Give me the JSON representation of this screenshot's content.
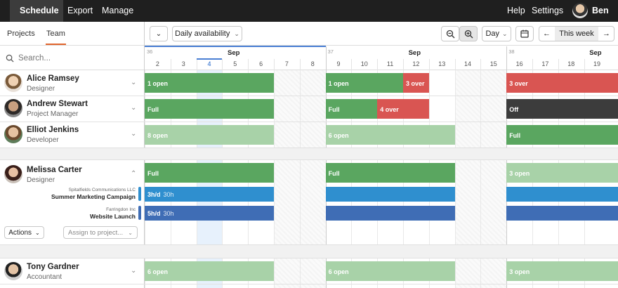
{
  "topnav": {
    "schedule": "Schedule",
    "export": "Export",
    "manage": "Manage",
    "help": "Help",
    "settings": "Settings",
    "user": "Ben"
  },
  "tabs": {
    "projects": "Projects",
    "team": "Team"
  },
  "toolbar": {
    "availability": "Daily availability",
    "view": "Day",
    "this_week": "This week"
  },
  "search": {
    "placeholder": "Search..."
  },
  "weeks": [
    {
      "num": "36",
      "month": "Sep"
    },
    {
      "num": "37",
      "month": "Sep"
    },
    {
      "num": "38",
      "month": "Sep"
    }
  ],
  "days": [
    "2",
    "3",
    "4",
    "5",
    "6",
    "7",
    "8",
    "9",
    "10",
    "11",
    "12",
    "13",
    "14",
    "15",
    "16",
    "17",
    "18",
    "19"
  ],
  "today_index": 2,
  "people": [
    {
      "name": "Alice Ramsey",
      "role": "Designer",
      "bars": [
        "1 open",
        "1 open",
        "3 over",
        "3 over"
      ]
    },
    {
      "name": "Andrew Stewart",
      "role": "Project Manager",
      "bars": [
        "Full",
        "Full",
        "4 over",
        "Off"
      ]
    },
    {
      "name": "Elliot Jenkins",
      "role": "Developer",
      "bars": [
        "8 open",
        "6 open",
        "Full"
      ]
    },
    {
      "name": "Melissa Carter",
      "role": "Designer",
      "bars": [
        "Full",
        "Full",
        "3 open"
      ]
    },
    {
      "name": "Tony Gardner",
      "role": "Accountant",
      "bars": [
        "6 open",
        "6 open",
        "3 open"
      ]
    }
  ],
  "projects": [
    {
      "client": "Spitalfields Communications LLC",
      "name": "Summer Marketing Campaign",
      "rate": "3h/d",
      "total": "30h",
      "color": "#2f8fcf"
    },
    {
      "client": "Farringdon Inc",
      "name": "Website Launch",
      "rate": "5h/d",
      "total": "30h",
      "color": "#3f6db5"
    }
  ],
  "actions": {
    "actions_label": "Actions",
    "assign_placeholder": "Assign to project..."
  },
  "colors": {
    "full": "#5aa660",
    "open": "#a8d2a8",
    "over": "#d95552",
    "off": "#3c3c3c",
    "accent": "#e0642c"
  }
}
